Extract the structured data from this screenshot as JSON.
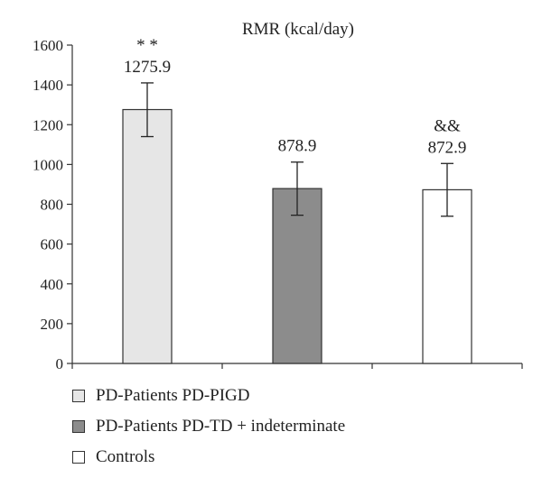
{
  "chart_data": {
    "type": "bar",
    "title": "RMR (kcal/day)",
    "categories": [
      "PD-Patients PD-PIGD",
      "PD-Patients PD-TD + indeterminate",
      "Controls"
    ],
    "values": [
      1275.9,
      878.9,
      872.9
    ],
    "value_labels": [
      "1275.9",
      "878.9",
      "872.9"
    ],
    "error_low": [
      1140,
      745,
      740
    ],
    "error_high": [
      1410,
      1012,
      1005
    ],
    "annotations": [
      "* *",
      "",
      "&&"
    ],
    "colors": [
      "#e6e6e6",
      "#8c8c8c",
      "#ffffff"
    ],
    "ylim": [
      0,
      1600
    ],
    "yticks": [
      "0",
      "200",
      "400",
      "600",
      "800",
      "1000",
      "1200",
      "1400",
      "1600"
    ],
    "grid": false,
    "legend_position": "bottom"
  }
}
